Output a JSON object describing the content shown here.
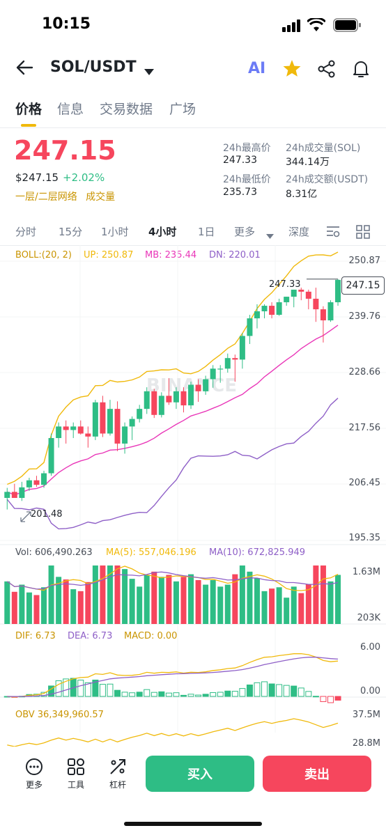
{
  "status": {
    "time": "10:15"
  },
  "header": {
    "pair": "SOL/USDT",
    "ai_label": "AI"
  },
  "tabs": [
    "价格",
    "信息",
    "交易数据",
    "广场"
  ],
  "price": {
    "last": "247.15",
    "usd": "$247.15",
    "change": "+2.02%",
    "network": "一层/二层网络",
    "volume_tag": "成交量"
  },
  "stats": {
    "high_label": "24h最高价",
    "high": "247.33",
    "low_label": "24h最低价",
    "low": "235.73",
    "vol_label": "24h成交量(SOL)",
    "vol": "344.14万",
    "amt_label": "24h成交额(USDT)",
    "amt": "8.31亿"
  },
  "intervals": [
    "分时",
    "15分",
    "1小时",
    "4小时",
    "1日",
    "更多",
    "深度"
  ],
  "active_interval": "4小时",
  "watermark": "BINANCE",
  "main_chart": {
    "boll_label": "BOLL:(20, 2)",
    "up_label": "UP: 250.87",
    "mb_label": "MB: 235.44",
    "dn_label": "DN: 220.01",
    "y_ticks": [
      "250.87",
      "239.76",
      "228.66",
      "217.56",
      "206.45",
      "195.35"
    ],
    "high_marker": "247.33",
    "low_marker": "201.48",
    "current_price_tag": "247.15"
  },
  "vol_chart": {
    "vol_label": "Vol: 606,490.263",
    "ma5_label": "MA(5): 557,046.196",
    "ma10_label": "MA(10): 672,825.949",
    "y_ticks": [
      "1.63M",
      "203K"
    ]
  },
  "macd_chart": {
    "dif_label": "DIF: 6.73",
    "dea_label": "DEA: 6.73",
    "macd_label": "MACD: 0.00",
    "y_ticks": [
      "6.00",
      "0.00"
    ]
  },
  "obv_chart": {
    "obv_label": "OBV 36,349,960.57",
    "y_ticks": [
      "37.5M",
      "28.8M"
    ]
  },
  "toolbar": {
    "more": "更多",
    "tools": "工具",
    "leverage": "杠杆",
    "buy": "买入",
    "sell": "卖出"
  },
  "colors": {
    "up": "#2ebd85",
    "down": "#f6465d",
    "boll_up": "#f0b90b",
    "boll_mb": "#e936b8",
    "boll_dn": "#8e5fc7",
    "accent": "#f0b90b"
  },
  "chart_data": {
    "type": "candlestick",
    "series": [
      {
        "o": 203.8,
        "h": 205.8,
        "l": 201.5,
        "c": 205.0
      },
      {
        "o": 205.0,
        "h": 206.6,
        "l": 203.9,
        "c": 203.8
      },
      {
        "o": 203.8,
        "h": 207.0,
        "l": 203.2,
        "c": 205.9
      },
      {
        "o": 205.9,
        "h": 207.8,
        "l": 205.2,
        "c": 207.3
      },
      {
        "o": 207.3,
        "h": 208.2,
        "l": 206.0,
        "c": 206.4
      },
      {
        "o": 206.4,
        "h": 209.2,
        "l": 205.8,
        "c": 208.7
      },
      {
        "o": 208.7,
        "h": 216.6,
        "l": 208.2,
        "c": 215.7
      },
      {
        "o": 215.7,
        "h": 218.8,
        "l": 213.8,
        "c": 218.0
      },
      {
        "o": 218.0,
        "h": 219.2,
        "l": 214.6,
        "c": 217.3
      },
      {
        "o": 217.3,
        "h": 218.8,
        "l": 215.7,
        "c": 218.0
      },
      {
        "o": 218.0,
        "h": 219.2,
        "l": 216.4,
        "c": 216.6
      },
      {
        "o": 216.6,
        "h": 218.0,
        "l": 213.8,
        "c": 216.0
      },
      {
        "o": 216.0,
        "h": 223.3,
        "l": 215.3,
        "c": 222.8
      },
      {
        "o": 222.8,
        "h": 224.1,
        "l": 215.9,
        "c": 216.6
      },
      {
        "o": 216.6,
        "h": 223.3,
        "l": 216.2,
        "c": 221.5
      },
      {
        "o": 221.5,
        "h": 223.0,
        "l": 213.1,
        "c": 214.6
      },
      {
        "o": 214.6,
        "h": 218.8,
        "l": 212.6,
        "c": 218.0
      },
      {
        "o": 218.0,
        "h": 220.0,
        "l": 215.3,
        "c": 219.5
      },
      {
        "o": 219.5,
        "h": 222.3,
        "l": 218.8,
        "c": 221.5
      },
      {
        "o": 221.5,
        "h": 225.8,
        "l": 220.5,
        "c": 225.0
      },
      {
        "o": 225.0,
        "h": 225.5,
        "l": 219.7,
        "c": 220.3
      },
      {
        "o": 220.3,
        "h": 224.8,
        "l": 219.8,
        "c": 224.1
      },
      {
        "o": 224.1,
        "h": 227.6,
        "l": 222.3,
        "c": 222.8
      },
      {
        "o": 222.8,
        "h": 225.8,
        "l": 221.5,
        "c": 225.0
      },
      {
        "o": 225.0,
        "h": 225.8,
        "l": 220.8,
        "c": 222.2
      },
      {
        "o": 222.2,
        "h": 226.9,
        "l": 221.5,
        "c": 226.3
      },
      {
        "o": 226.3,
        "h": 227.4,
        "l": 222.9,
        "c": 225.0
      },
      {
        "o": 225.0,
        "h": 228.1,
        "l": 224.3,
        "c": 227.4
      },
      {
        "o": 227.4,
        "h": 230.2,
        "l": 225.7,
        "c": 229.5
      },
      {
        "o": 229.5,
        "h": 230.2,
        "l": 226.7,
        "c": 229.5
      },
      {
        "o": 229.5,
        "h": 232.5,
        "l": 228.7,
        "c": 231.6
      },
      {
        "o": 231.6,
        "h": 232.3,
        "l": 226.9,
        "c": 231.3
      },
      {
        "o": 231.3,
        "h": 236.6,
        "l": 229.5,
        "c": 236.0
      },
      {
        "o": 236.0,
        "h": 240.2,
        "l": 234.4,
        "c": 239.5
      },
      {
        "o": 239.5,
        "h": 242.3,
        "l": 237.5,
        "c": 240.9
      },
      {
        "o": 240.9,
        "h": 242.3,
        "l": 239.5,
        "c": 242.0
      },
      {
        "o": 242.0,
        "h": 242.7,
        "l": 239.5,
        "c": 240.2
      },
      {
        "o": 240.2,
        "h": 243.4,
        "l": 240.0,
        "c": 242.7
      },
      {
        "o": 242.7,
        "h": 243.8,
        "l": 242.0,
        "c": 243.8
      },
      {
        "o": 243.8,
        "h": 245.2,
        "l": 241.7,
        "c": 245.2
      },
      {
        "o": 245.2,
        "h": 245.6,
        "l": 243.1,
        "c": 244.8
      },
      {
        "o": 244.8,
        "h": 245.2,
        "l": 241.3,
        "c": 243.4
      },
      {
        "o": 243.4,
        "h": 245.6,
        "l": 238.8,
        "c": 241.3
      },
      {
        "o": 241.3,
        "h": 241.9,
        "l": 234.7,
        "c": 239.1
      },
      {
        "o": 239.1,
        "h": 243.1,
        "l": 238.8,
        "c": 242.7
      },
      {
        "o": 242.7,
        "h": 247.3,
        "l": 242.0,
        "c": 247.15
      }
    ],
    "y_range": [
      195.35,
      250.87
    ]
  }
}
